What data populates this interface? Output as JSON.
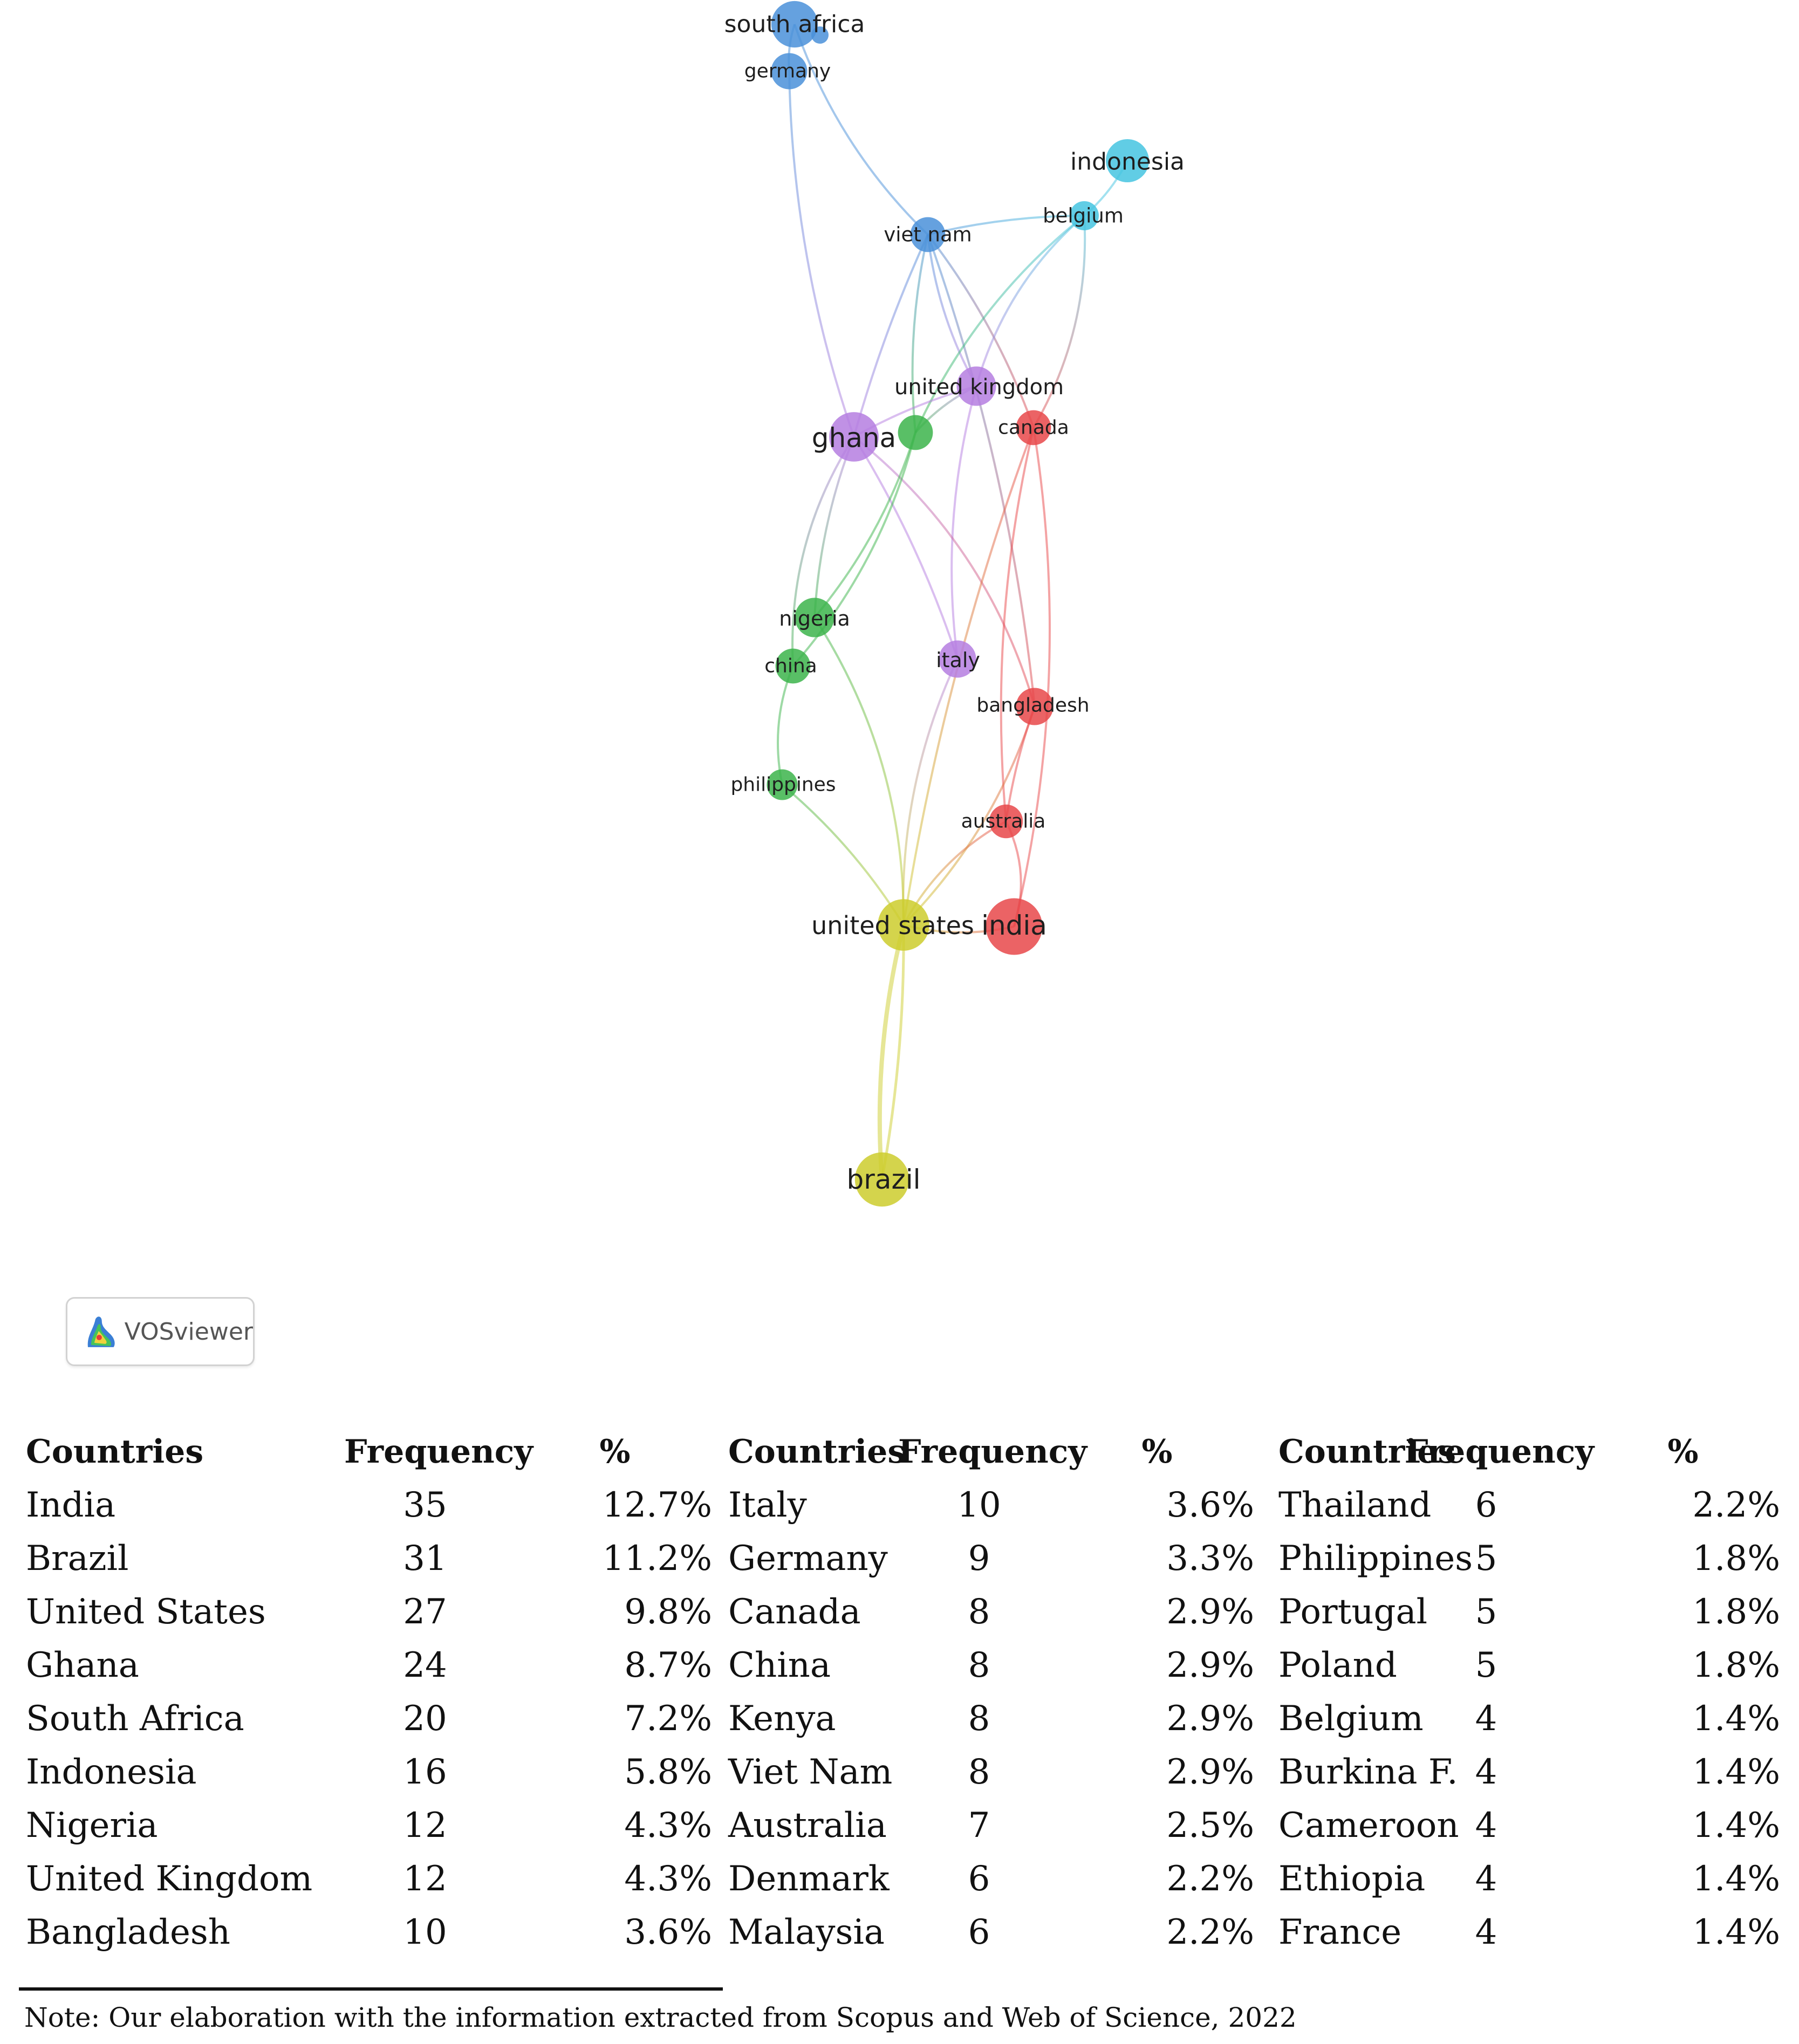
{
  "network": {
    "clusters": {
      "red": "#e8484a",
      "green": "#3cb44b",
      "blue": "#4a90d9",
      "yellow": "#cdcd2d",
      "purple": "#b57ee0",
      "cyan": "#45c4e0"
    },
    "nodes": [
      {
        "id": "south-africa",
        "label": "south africa",
        "cluster": "blue",
        "weight": 20
      },
      {
        "id": "germany",
        "label": "germany",
        "cluster": "blue",
        "weight": 9
      },
      {
        "id": "indonesia",
        "label": "indonesia",
        "cluster": "cyan",
        "weight": 16
      },
      {
        "id": "belgium",
        "label": "belgium",
        "cluster": "cyan",
        "weight": 4
      },
      {
        "id": "viet-nam",
        "label": "viet nam",
        "cluster": "blue",
        "weight": 8
      },
      {
        "id": "united-kingdom",
        "label": "united kingdom",
        "cluster": "purple",
        "weight": 12
      },
      {
        "id": "canada",
        "label": "canada",
        "cluster": "red",
        "weight": 8
      },
      {
        "id": "ghana",
        "label": "ghana",
        "cluster": "purple",
        "weight": 24
      },
      {
        "id": "kenya",
        "label": "",
        "cluster": "green",
        "weight": 8
      },
      {
        "id": "nigeria",
        "label": "nigeria",
        "cluster": "green",
        "weight": 12
      },
      {
        "id": "china",
        "label": "china",
        "cluster": "green",
        "weight": 8
      },
      {
        "id": "italy",
        "label": "italy",
        "cluster": "purple",
        "weight": 10
      },
      {
        "id": "bangladesh",
        "label": "bangladesh",
        "cluster": "red",
        "weight": 10
      },
      {
        "id": "philippines",
        "label": "philippines",
        "cluster": "green",
        "weight": 5
      },
      {
        "id": "australia",
        "label": "australia",
        "cluster": "red",
        "weight": 7
      },
      {
        "id": "united-states",
        "label": "united states",
        "cluster": "yellow",
        "weight": 27
      },
      {
        "id": "india",
        "label": "india",
        "cluster": "red",
        "weight": 35
      },
      {
        "id": "brazil",
        "label": "brazil",
        "cluster": "yellow",
        "weight": 31
      }
    ],
    "links": [
      [
        "south-africa",
        "germany"
      ],
      [
        "south-africa",
        "viet-nam"
      ],
      [
        "germany",
        "ghana"
      ],
      [
        "viet-nam",
        "united-kingdom"
      ],
      [
        "viet-nam",
        "canada"
      ],
      [
        "viet-nam",
        "kenya"
      ],
      [
        "viet-nam",
        "bangladesh"
      ],
      [
        "viet-nam",
        "ghana"
      ],
      [
        "belgium",
        "indonesia"
      ],
      [
        "belgium",
        "united-kingdom"
      ],
      [
        "belgium",
        "kenya"
      ],
      [
        "belgium",
        "canada"
      ],
      [
        "belgium",
        "viet-nam"
      ],
      [
        "united-kingdom",
        "ghana"
      ],
      [
        "united-kingdom",
        "kenya"
      ],
      [
        "united-kingdom",
        "italy"
      ],
      [
        "ghana",
        "nigeria"
      ],
      [
        "ghana",
        "china"
      ],
      [
        "ghana",
        "italy"
      ],
      [
        "ghana",
        "bangladesh"
      ],
      [
        "kenya",
        "nigeria"
      ],
      [
        "kenya",
        "china"
      ],
      [
        "nigeria",
        "united-states"
      ],
      [
        "china",
        "philippines"
      ],
      [
        "philippines",
        "united-states"
      ],
      [
        "italy",
        "united-states"
      ],
      [
        "canada",
        "australia"
      ],
      [
        "canada",
        "india"
      ],
      [
        "bangladesh",
        "united-states"
      ],
      [
        "bangladesh",
        "australia"
      ],
      [
        "australia",
        "india"
      ],
      [
        "australia",
        "united-states"
      ],
      [
        "united-states",
        "india"
      ],
      [
        "united-states",
        "brazil"
      ],
      [
        "canada",
        "united-states"
      ]
    ]
  },
  "vosviewer": {
    "label": "VOSviewer"
  },
  "table": {
    "groups": [
      {
        "header": {
          "country": "Countries",
          "frequency": "Frequency",
          "percent": "%"
        },
        "rows": [
          {
            "country": "India",
            "frequency": "35",
            "percent": "12.7%"
          },
          {
            "country": "Brazil",
            "frequency": "31",
            "percent": "11.2%"
          },
          {
            "country": "United States",
            "frequency": "27",
            "percent": "9.8%"
          },
          {
            "country": "Ghana",
            "frequency": "24",
            "percent": "8.7%"
          },
          {
            "country": "South Africa",
            "frequency": "20",
            "percent": "7.2%"
          },
          {
            "country": "Indonesia",
            "frequency": "16",
            "percent": "5.8%"
          },
          {
            "country": "Nigeria",
            "frequency": "12",
            "percent": "4.3%"
          },
          {
            "country": "United Kingdom",
            "frequency": "12",
            "percent": "4.3%"
          },
          {
            "country": "Bangladesh",
            "frequency": "10",
            "percent": "3.6%"
          }
        ]
      },
      {
        "header": {
          "country": "Countries",
          "frequency": "Frequency",
          "percent": "%"
        },
        "rows": [
          {
            "country": "Italy",
            "frequency": "10",
            "percent": "3.6%"
          },
          {
            "country": "Germany",
            "frequency": "9",
            "percent": "3.3%"
          },
          {
            "country": "Canada",
            "frequency": "8",
            "percent": "2.9%"
          },
          {
            "country": "China",
            "frequency": "8",
            "percent": "2.9%"
          },
          {
            "country": "Kenya",
            "frequency": "8",
            "percent": "2.9%"
          },
          {
            "country": "Viet Nam",
            "frequency": "8",
            "percent": "2.9%"
          },
          {
            "country": "Australia",
            "frequency": "7",
            "percent": "2.5%"
          },
          {
            "country": "Denmark",
            "frequency": "6",
            "percent": "2.2%"
          },
          {
            "country": "Malaysia",
            "frequency": "6",
            "percent": "2.2%"
          }
        ]
      },
      {
        "header": {
          "country": "Countries",
          "frequency": "Frequency",
          "percent": "%"
        },
        "rows": [
          {
            "country": "Thailand",
            "frequency": "6",
            "percent": "2.2%"
          },
          {
            "country": "Philippines",
            "frequency": "5",
            "percent": "1.8%"
          },
          {
            "country": "Portugal",
            "frequency": "5",
            "percent": "1.8%"
          },
          {
            "country": "Poland",
            "frequency": "5",
            "percent": "1.8%"
          },
          {
            "country": "Belgium",
            "frequency": "4",
            "percent": "1.4%"
          },
          {
            "country": "Burkina F.",
            "frequency": "4",
            "percent": "1.4%"
          },
          {
            "country": "Cameroon",
            "frequency": "4",
            "percent": "1.4%"
          },
          {
            "country": "Ethiopia",
            "frequency": "4",
            "percent": "1.4%"
          },
          {
            "country": "France",
            "frequency": "4",
            "percent": "1.4%"
          }
        ]
      }
    ]
  },
  "note": "Note: Our elaboration with the information extracted from Scopus and Web of Science, 2022"
}
